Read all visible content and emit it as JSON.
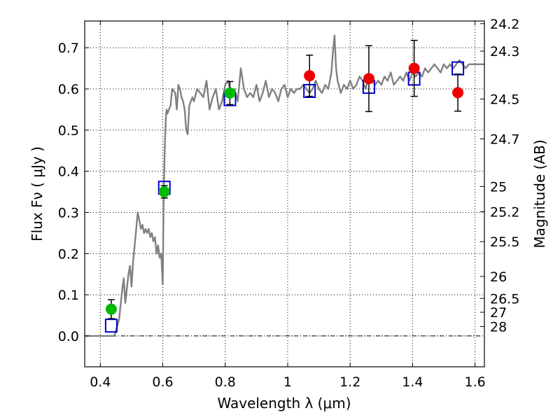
{
  "chart_data": {
    "type": "scatter",
    "xlabel": "Wavelength  λ (μm)",
    "ylabel": "Flux  Fν  ( μJy )",
    "ylabel_right": "Magnitude (AB)",
    "xlim": [
      0.35,
      1.63
    ],
    "ylim": [
      -0.075,
      0.765
    ],
    "grid": true,
    "x_ticks": [
      0.4,
      0.6,
      0.8,
      1.0,
      1.2,
      1.4,
      1.6
    ],
    "x_tick_labels": [
      "0.4",
      "0.6",
      "0.8",
      "1",
      "1.2",
      "1.4",
      "1.6"
    ],
    "y_ticks": [
      0.0,
      0.1,
      0.2,
      0.3,
      0.4,
      0.5,
      0.6,
      0.7
    ],
    "y_tick_labels": [
      "0.0",
      "0.1",
      "0.2",
      "0.3",
      "0.4",
      "0.5",
      "0.6",
      "0.7"
    ],
    "mag_ticks": [
      "24.2",
      "24.3",
      "24.5",
      "24.7",
      "25",
      "25.2",
      "25.5",
      "26",
      "26.5",
      "27",
      "28"
    ],
    "series": [
      {
        "kind": "line",
        "color": "#808080",
        "x": [
          0.35,
          0.43,
          0.445,
          0.46,
          0.47,
          0.475,
          0.48,
          0.49,
          0.495,
          0.5,
          0.505,
          0.51,
          0.52,
          0.525,
          0.53,
          0.535,
          0.54,
          0.545,
          0.55,
          0.555,
          0.56,
          0.565,
          0.57,
          0.575,
          0.58,
          0.585,
          0.59,
          0.595,
          0.6,
          0.603,
          0.607,
          0.61,
          0.612,
          0.615,
          0.62,
          0.625,
          0.63,
          0.64,
          0.645,
          0.65,
          0.655,
          0.66,
          0.665,
          0.67,
          0.675,
          0.68,
          0.685,
          0.69,
          0.695,
          0.7,
          0.71,
          0.72,
          0.73,
          0.74,
          0.75,
          0.76,
          0.77,
          0.78,
          0.79,
          0.8,
          0.81,
          0.82,
          0.83,
          0.84,
          0.85,
          0.86,
          0.87,
          0.88,
          0.89,
          0.9,
          0.91,
          0.92,
          0.93,
          0.94,
          0.95,
          0.96,
          0.97,
          0.98,
          0.99,
          1.0,
          1.01,
          1.02,
          1.03,
          1.04,
          1.05,
          1.06,
          1.07,
          1.08,
          1.09,
          1.1,
          1.11,
          1.12,
          1.13,
          1.14,
          1.145,
          1.15,
          1.155,
          1.16,
          1.17,
          1.18,
          1.19,
          1.2,
          1.21,
          1.22,
          1.23,
          1.24,
          1.25,
          1.26,
          1.27,
          1.28,
          1.29,
          1.3,
          1.31,
          1.32,
          1.33,
          1.34,
          1.35,
          1.36,
          1.37,
          1.38,
          1.39,
          1.4,
          1.41,
          1.42,
          1.43,
          1.44,
          1.45,
          1.46,
          1.47,
          1.48,
          1.49,
          1.5,
          1.51,
          1.52,
          1.53,
          1.54,
          1.55,
          1.56,
          1.57,
          1.58,
          1.59,
          1.6,
          1.61,
          1.62,
          1.63
        ],
        "y": [
          0.0,
          0.0,
          0.0,
          0.04,
          0.11,
          0.14,
          0.08,
          0.15,
          0.17,
          0.12,
          0.18,
          0.22,
          0.3,
          0.28,
          0.26,
          0.27,
          0.25,
          0.26,
          0.25,
          0.26,
          0.24,
          0.25,
          0.23,
          0.24,
          0.2,
          0.22,
          0.19,
          0.2,
          0.125,
          0.35,
          0.47,
          0.53,
          0.55,
          0.54,
          0.55,
          0.56,
          0.6,
          0.59,
          0.55,
          0.61,
          0.6,
          0.58,
          0.57,
          0.55,
          0.5,
          0.49,
          0.56,
          0.57,
          0.58,
          0.57,
          0.6,
          0.59,
          0.58,
          0.62,
          0.55,
          0.58,
          0.6,
          0.55,
          0.57,
          0.61,
          0.62,
          0.58,
          0.6,
          0.57,
          0.65,
          0.6,
          0.58,
          0.59,
          0.58,
          0.61,
          0.57,
          0.59,
          0.62,
          0.58,
          0.6,
          0.59,
          0.57,
          0.6,
          0.61,
          0.58,
          0.6,
          0.59,
          0.6,
          0.6,
          0.61,
          0.6,
          0.59,
          0.6,
          0.62,
          0.6,
          0.59,
          0.61,
          0.6,
          0.64,
          0.69,
          0.73,
          0.65,
          0.62,
          0.59,
          0.61,
          0.6,
          0.62,
          0.6,
          0.61,
          0.63,
          0.62,
          0.6,
          0.63,
          0.62,
          0.61,
          0.62,
          0.61,
          0.63,
          0.62,
          0.64,
          0.61,
          0.62,
          0.63,
          0.62,
          0.64,
          0.62,
          0.64,
          0.63,
          0.64,
          0.63,
          0.65,
          0.64,
          0.65,
          0.66,
          0.65,
          0.64,
          0.66,
          0.65,
          0.66,
          0.65,
          0.66,
          0.67,
          0.66,
          0.65,
          0.66,
          0.66,
          0.66,
          0.66,
          0.66,
          0.66
        ]
      },
      {
        "kind": "open-square",
        "color": "#0000cc",
        "x": [
          0.435,
          0.605,
          0.815,
          1.07,
          1.26,
          1.405,
          1.545
        ],
        "y": [
          0.025,
          0.36,
          0.575,
          0.595,
          0.605,
          0.625,
          0.65
        ]
      },
      {
        "kind": "filled-circle",
        "color": "#00bb00",
        "x": [
          0.435,
          0.605,
          0.815
        ],
        "y": [
          0.065,
          0.35,
          0.59
        ],
        "err": [
          0.023,
          0.015,
          0.028
        ]
      },
      {
        "kind": "filled-circle",
        "color": "#ee0000",
        "x": [
          1.07,
          1.26,
          1.405,
          1.545
        ],
        "y": [
          0.632,
          0.625,
          0.65,
          0.591
        ],
        "err": [
          0.05,
          0.08,
          0.068,
          0.045
        ]
      }
    ]
  }
}
